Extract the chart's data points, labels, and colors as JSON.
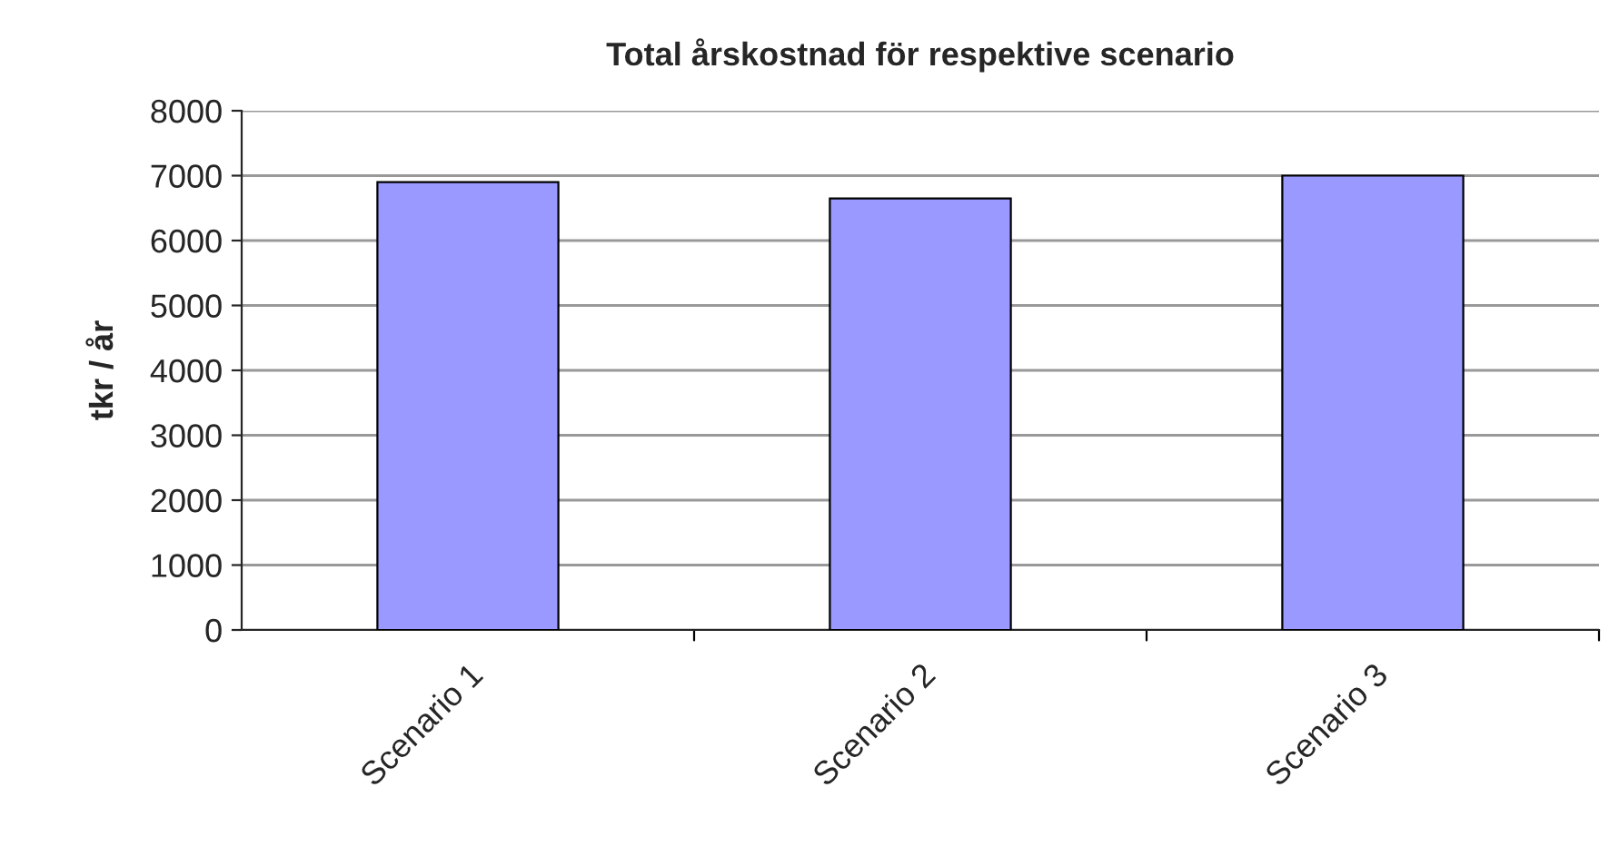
{
  "chart_data": {
    "type": "bar",
    "title": "Total årskostnad för respektive scenario",
    "ylabel": "tkr / år",
    "categories": [
      "Scenario 1",
      "Scenario 2",
      "Scenario 3"
    ],
    "values": [
      6900,
      6650,
      7000
    ],
    "color": "#9999ff",
    "ylim": [
      0,
      8000
    ],
    "yticks": [
      0,
      1000,
      2000,
      3000,
      4000,
      5000,
      6000,
      7000,
      8000
    ],
    "grid": "y"
  }
}
